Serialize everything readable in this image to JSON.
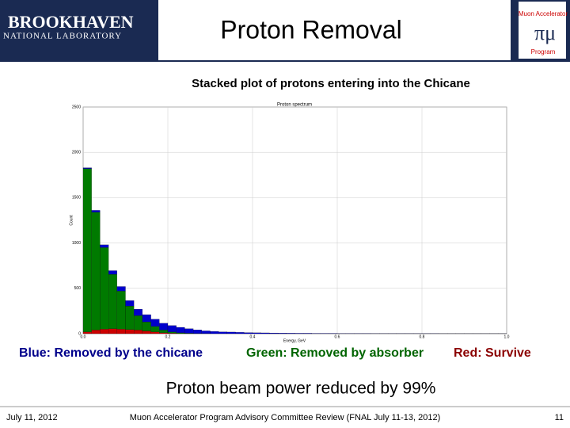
{
  "header": {
    "title": "Proton Removal",
    "left_logo": [
      "BROOKHAVEN",
      "NATIONAL LABORATORY"
    ],
    "right_logo": [
      "Muon Accelerator",
      "Program"
    ]
  },
  "subtitle": "Stacked plot of protons entering into the Chicane",
  "chart_data": {
    "type": "stacked_histogram",
    "title": "Proton spectrum",
    "xlabel": "Energy, GeV",
    "ylabel": "Count",
    "bins": [
      0.0,
      0.02,
      0.04,
      0.06,
      0.08,
      0.1,
      0.12,
      0.14,
      0.16,
      0.18,
      0.2,
      0.22,
      0.24,
      0.26,
      0.28,
      0.3,
      0.32,
      0.34,
      0.36,
      0.38,
      0.4,
      0.42,
      0.44,
      0.46,
      0.48,
      0.5,
      0.52,
      0.54,
      0.56,
      0.58,
      0.6,
      0.62,
      0.64,
      0.66,
      0.68,
      0.7,
      0.72,
      0.74,
      0.76,
      0.78,
      0.8,
      0.82,
      0.84,
      0.86,
      0.88,
      0.9,
      0.92,
      0.94,
      0.96,
      0.98,
      1.0
    ],
    "series": [
      {
        "name": "Red: Survive",
        "color": "#cc0000",
        "values": [
          20,
          40,
          50,
          55,
          50,
          45,
          40,
          30,
          20,
          10,
          5,
          2,
          1,
          0,
          0,
          0,
          0,
          0,
          0,
          0,
          0,
          0,
          0,
          0,
          0,
          0,
          0,
          0,
          0,
          0,
          0,
          0,
          0,
          0,
          0,
          0,
          0,
          0,
          0,
          0,
          0,
          0,
          0,
          0,
          0,
          0,
          0,
          0,
          0,
          0
        ]
      },
      {
        "name": "Green: Removed by absorber",
        "color": "#007a00",
        "values": [
          1800,
          1300,
          900,
          600,
          420,
          260,
          160,
          100,
          60,
          30,
          15,
          8,
          4,
          2,
          1,
          0,
          0,
          0,
          0,
          0,
          0,
          0,
          0,
          0,
          0,
          0,
          0,
          0,
          0,
          0,
          0,
          0,
          0,
          0,
          0,
          0,
          0,
          0,
          0,
          0,
          0,
          0,
          0,
          0,
          0,
          0,
          0,
          0,
          0,
          0
        ]
      },
      {
        "name": "Blue: Removed by the chicane",
        "color": "#0000cc",
        "values": [
          10,
          20,
          30,
          40,
          50,
          60,
          70,
          80,
          80,
          75,
          70,
          60,
          50,
          40,
          30,
          25,
          20,
          18,
          15,
          12,
          10,
          9,
          8,
          7,
          6,
          5,
          5,
          4,
          4,
          4,
          3,
          3,
          3,
          3,
          2,
          2,
          2,
          2,
          2,
          2,
          2,
          2,
          1,
          1,
          1,
          1,
          1,
          1,
          1,
          1
        ]
      }
    ],
    "xlim": [
      0,
      1
    ],
    "ylim": [
      0,
      2500
    ],
    "xticks": [
      {
        "value": 0,
        "label": "0.0"
      },
      0.2,
      0.4,
      0.6,
      0.8,
      {
        "value": 1,
        "label": "1.0"
      }
    ],
    "yticks": [
      0,
      500,
      1000,
      1500,
      2000,
      2500
    ],
    "grid": true
  },
  "conclusion": "Proton beam power reduced by 99%",
  "footer": {
    "date": "July 11, 2012",
    "event": "Muon Accelerator Program Advisory Committee Review (FNAL July 11-13, 2012)",
    "page": "11"
  }
}
